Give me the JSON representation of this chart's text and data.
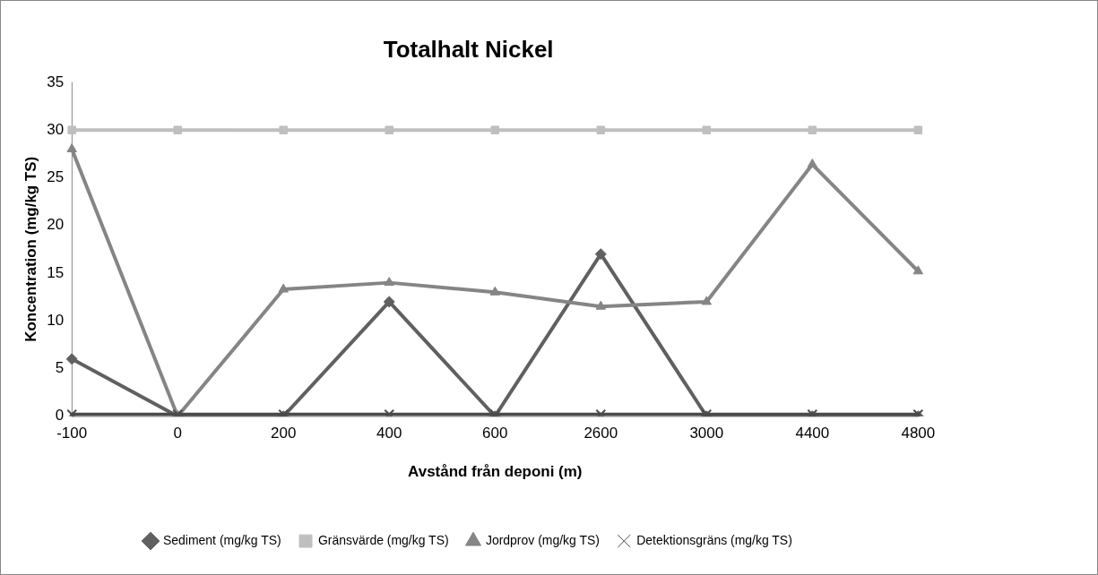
{
  "chart_data": {
    "type": "line",
    "title": "Totalhalt Nickel",
    "xlabel": "Avstånd från deponi (m)",
    "ylabel": "Koncentration (mg/kg TS)",
    "categories": [
      "-100",
      "0",
      "200",
      "400",
      "600",
      "2600",
      "3000",
      "4400",
      "4800"
    ],
    "ylim": [
      0,
      35
    ],
    "yticks": [
      0,
      5,
      10,
      15,
      20,
      25,
      30,
      35
    ],
    "grid": false,
    "legend": "bottom",
    "line_style": "solid",
    "series": [
      {
        "name": "Sediment (mg/kg TS)",
        "color": "#606060",
        "marker": "diamond",
        "values": [
          6,
          0,
          0,
          12,
          0,
          17,
          0,
          0,
          0
        ]
      },
      {
        "name": "Gränsvärde (mg/kg TS)",
        "color": "#bfbfbf",
        "marker": "square",
        "values": [
          30,
          30,
          30,
          30,
          30,
          30,
          30,
          30,
          30
        ]
      },
      {
        "name": "Jordprov (mg/kg TS)",
        "color": "#858585",
        "marker": "triangle",
        "values": [
          28,
          0,
          13.3,
          14,
          13,
          11.5,
          12,
          26.4,
          15.2
        ]
      },
      {
        "name": "Detektionsgräns (mg/kg TS)",
        "color": "#4a4a4a",
        "marker": "cross",
        "values": [
          0.2,
          0.2,
          0.2,
          0.2,
          0.2,
          0.2,
          0.2,
          0.2,
          0.2
        ]
      }
    ]
  }
}
